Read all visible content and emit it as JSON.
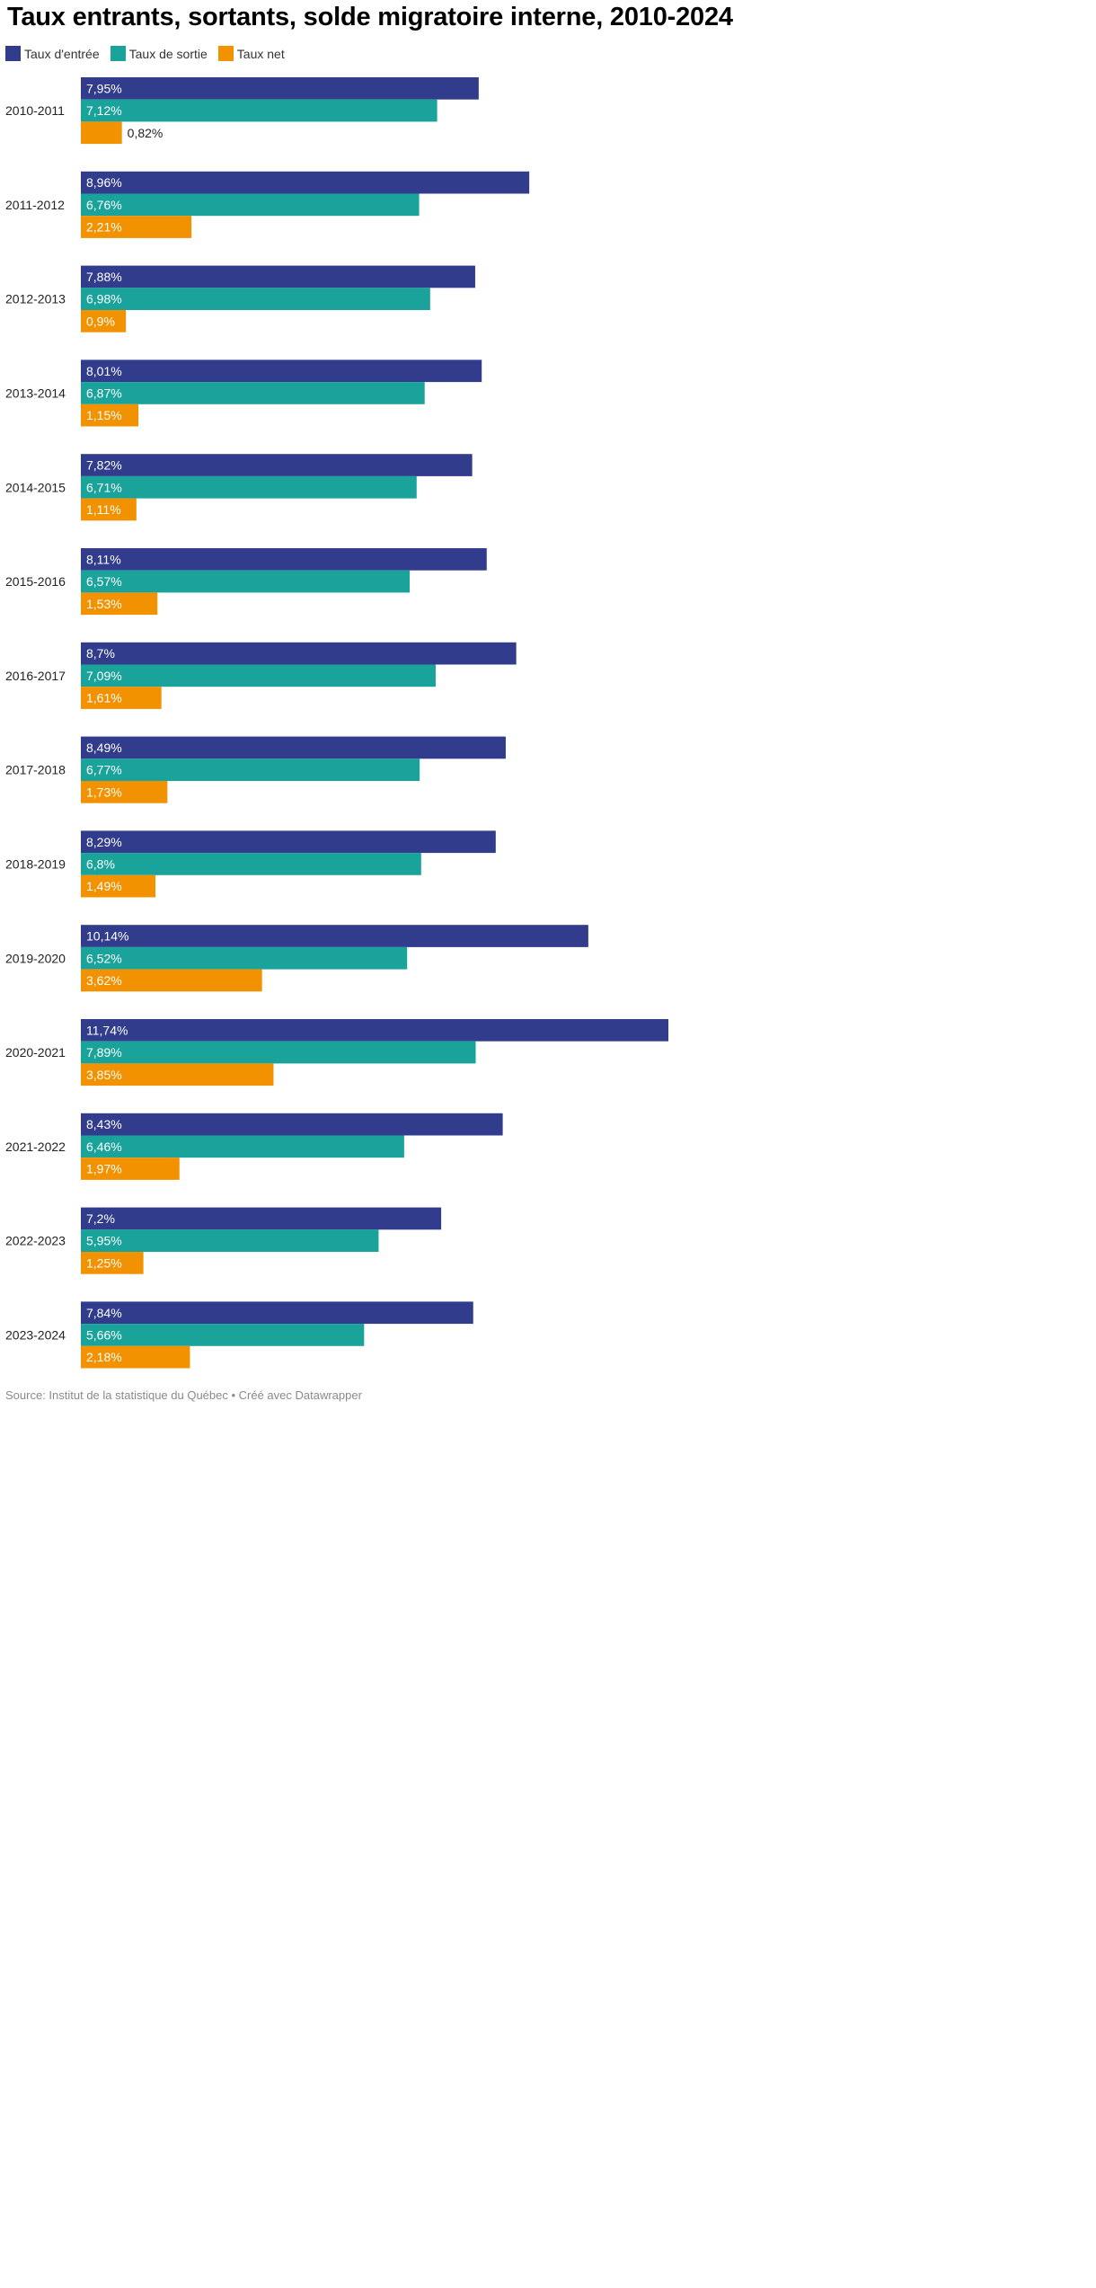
{
  "chart_data": {
    "type": "bar",
    "orientation": "horizontal",
    "title": "Taux entrants, sortants, solde migratoire interne, 2010-2024",
    "categories": [
      "2010-2011",
      "2011-2012",
      "2012-2013",
      "2013-2014",
      "2014-2015",
      "2015-2016",
      "2016-2017",
      "2017-2018",
      "2018-2019",
      "2019-2020",
      "2020-2021",
      "2021-2022",
      "2022-2023",
      "2023-2024"
    ],
    "series": [
      {
        "name": "Taux d'entrée",
        "color": "#323c8c",
        "values": [
          7.95,
          8.96,
          7.88,
          8.01,
          7.82,
          8.11,
          8.7,
          8.49,
          8.29,
          10.14,
          11.74,
          8.43,
          7.2,
          7.84
        ],
        "labels": [
          "7,95%",
          "8,96%",
          "7,88%",
          "8,01%",
          "7,82%",
          "8,11%",
          "8,7%",
          "8,49%",
          "8,29%",
          "10,14%",
          "11,74%",
          "8,43%",
          "7,2%",
          "7,84%"
        ]
      },
      {
        "name": "Taux de sortie",
        "color": "#1aa39a",
        "values": [
          7.12,
          6.76,
          6.98,
          6.87,
          6.71,
          6.57,
          7.09,
          6.77,
          6.8,
          6.52,
          7.89,
          6.46,
          5.95,
          5.66
        ],
        "labels": [
          "7,12%",
          "6,76%",
          "6,98%",
          "6,87%",
          "6,71%",
          "6,57%",
          "7,09%",
          "6,77%",
          "6,8%",
          "6,52%",
          "7,89%",
          "6,46%",
          "5,95%",
          "5,66%"
        ]
      },
      {
        "name": "Taux net",
        "color": "#f39200",
        "values": [
          0.82,
          2.21,
          0.9,
          1.15,
          1.11,
          1.53,
          1.61,
          1.73,
          1.49,
          3.62,
          3.85,
          1.97,
          1.25,
          2.18
        ],
        "labels": [
          "0,82%",
          "2,21%",
          "0,9%",
          "1,15%",
          "1,11%",
          "1,53%",
          "1,61%",
          "1,73%",
          "1,49%",
          "3,62%",
          "3,85%",
          "1,97%",
          "1,25%",
          "2,18%"
        ]
      }
    ],
    "xlim": [
      0,
      11.74
    ],
    "legend_position": "top-left",
    "grid": false
  },
  "source": "Source: Institut de la statistique du Québec • Créé avec Datawrapper"
}
